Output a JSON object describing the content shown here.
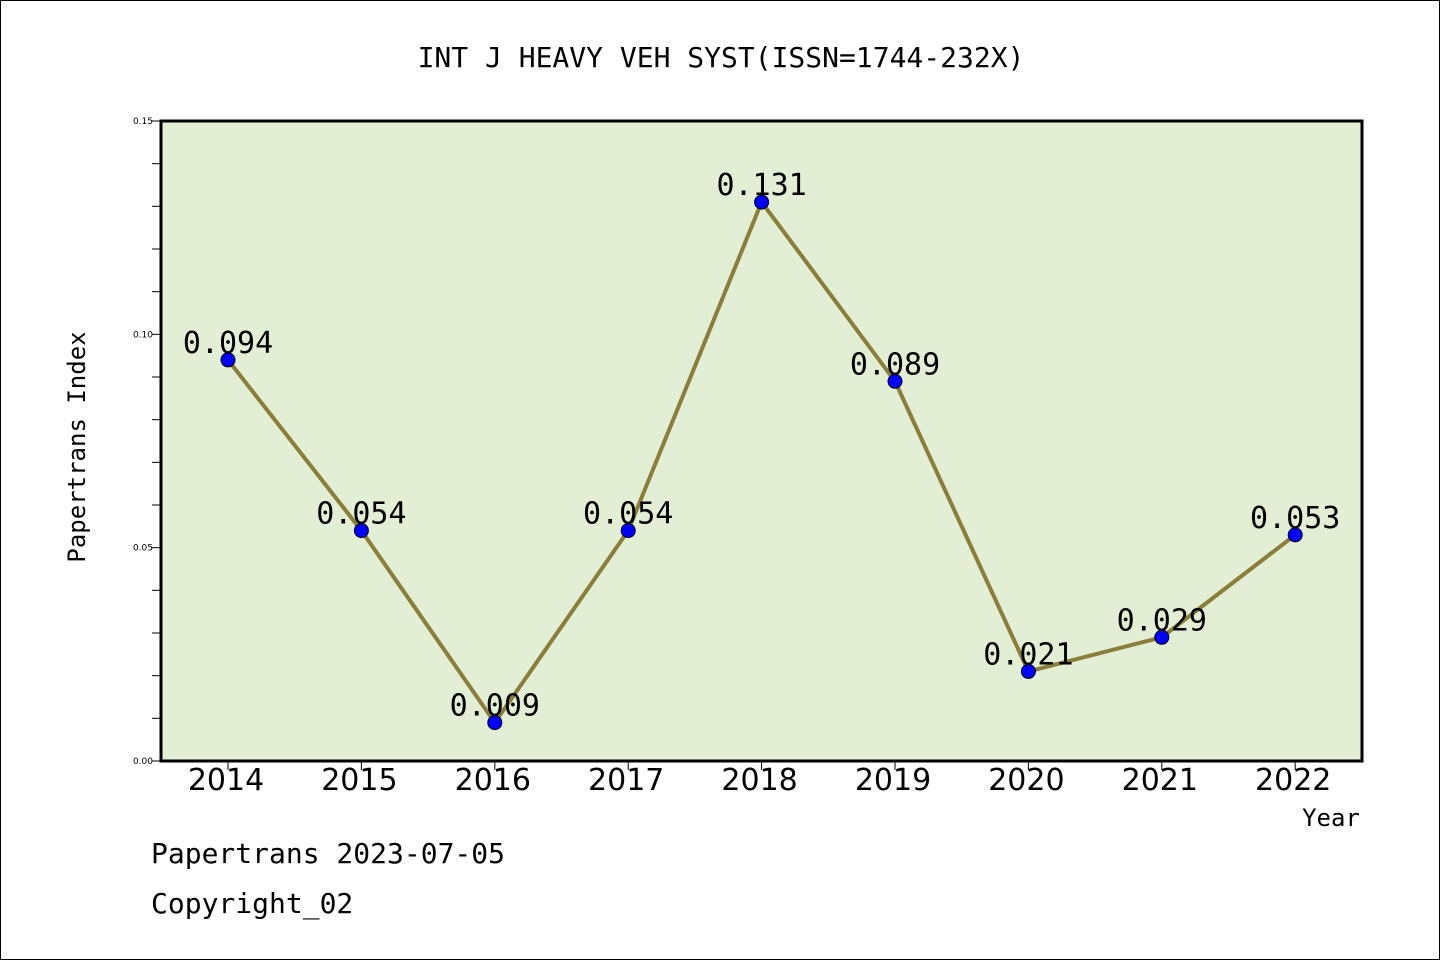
{
  "chart_data": {
    "type": "line",
    "title": "INT J HEAVY VEH SYST(ISSN=1744-232X)",
    "xlabel": "Year",
    "ylabel": "Papertrans Index",
    "categories": [
      "2014",
      "2015",
      "2016",
      "2017",
      "2018",
      "2019",
      "2020",
      "2021",
      "2022"
    ],
    "series": [
      {
        "values": [
          0.094,
          0.054,
          0.009,
          0.054,
          0.131,
          0.089,
          0.021,
          0.029,
          0.053
        ],
        "data_labels": [
          "0.094",
          "0.054",
          "0.009",
          "0.054",
          "0.131",
          "0.089",
          "0.021",
          "0.029",
          "0.053"
        ],
        "line_color": "#8B7D3A",
        "marker_color": "#0000FF"
      }
    ],
    "ylim": [
      0,
      0.15
    ],
    "yticks": [
      0.0,
      0.05,
      0.1,
      0.15
    ],
    "ytick_labels": [
      "0.00",
      "0.05",
      "0.10",
      "0.15"
    ],
    "plot_background": "#E2EFD5",
    "grid": false
  },
  "footer": {
    "line1": "Papertrans 2023-07-05",
    "line2": "Copyright_02"
  }
}
